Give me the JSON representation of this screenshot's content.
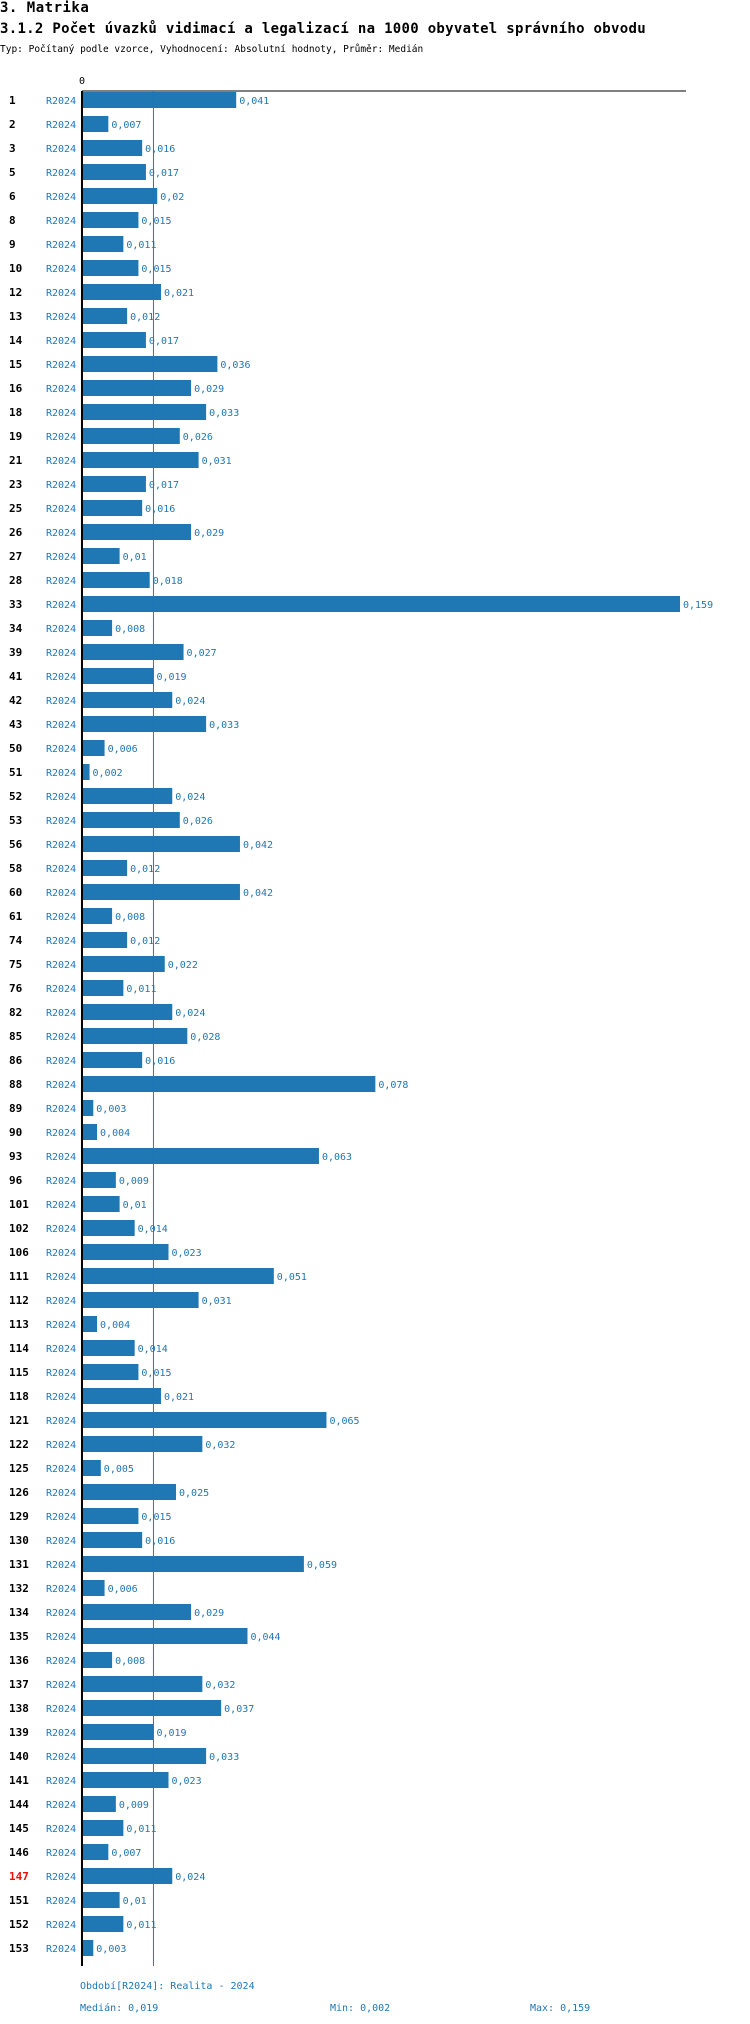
{
  "header": {
    "section_title": "3. Matrika",
    "chart_title": "3.1.2 Počet úvazků vidimací a legalizací na 1000 obyvatel správního obvodu",
    "subtitle": "Typ: Počítaný podle vzorce, Vyhodnocení: Absolutní hodnoty, Průměr: Medián"
  },
  "colors": {
    "bar": "#1f77b4",
    "label_blue": "#1f77b4",
    "highlight": "#e8120c",
    "axis": "#000000",
    "median_line": "#1f77b4"
  },
  "chart_data": {
    "type": "bar",
    "orientation": "horizontal",
    "x_zero_label": "0",
    "xlim": [
      0,
      0.159
    ],
    "median": 0.019,
    "highlighted": "147",
    "series": [
      {
        "name": "R2024",
        "label_in_row": "R2024"
      }
    ],
    "rows": [
      {
        "id": "1",
        "value": 0.041,
        "label": "0,041"
      },
      {
        "id": "2",
        "value": 0.007,
        "label": "0,007"
      },
      {
        "id": "3",
        "value": 0.016,
        "label": "0,016"
      },
      {
        "id": "5",
        "value": 0.017,
        "label": "0,017"
      },
      {
        "id": "6",
        "value": 0.02,
        "label": "0,02"
      },
      {
        "id": "8",
        "value": 0.015,
        "label": "0,015"
      },
      {
        "id": "9",
        "value": 0.011,
        "label": "0,011"
      },
      {
        "id": "10",
        "value": 0.015,
        "label": "0,015"
      },
      {
        "id": "12",
        "value": 0.021,
        "label": "0,021"
      },
      {
        "id": "13",
        "value": 0.012,
        "label": "0,012"
      },
      {
        "id": "14",
        "value": 0.017,
        "label": "0,017"
      },
      {
        "id": "15",
        "value": 0.036,
        "label": "0,036"
      },
      {
        "id": "16",
        "value": 0.029,
        "label": "0,029"
      },
      {
        "id": "18",
        "value": 0.033,
        "label": "0,033"
      },
      {
        "id": "19",
        "value": 0.026,
        "label": "0,026"
      },
      {
        "id": "21",
        "value": 0.031,
        "label": "0,031"
      },
      {
        "id": "23",
        "value": 0.017,
        "label": "0,017"
      },
      {
        "id": "25",
        "value": 0.016,
        "label": "0,016"
      },
      {
        "id": "26",
        "value": 0.029,
        "label": "0,029"
      },
      {
        "id": "27",
        "value": 0.01,
        "label": "0,01"
      },
      {
        "id": "28",
        "value": 0.018,
        "label": "0,018"
      },
      {
        "id": "33",
        "value": 0.159,
        "label": "0,159"
      },
      {
        "id": "34",
        "value": 0.008,
        "label": "0,008"
      },
      {
        "id": "39",
        "value": 0.027,
        "label": "0,027"
      },
      {
        "id": "41",
        "value": 0.019,
        "label": "0,019"
      },
      {
        "id": "42",
        "value": 0.024,
        "label": "0,024"
      },
      {
        "id": "43",
        "value": 0.033,
        "label": "0,033"
      },
      {
        "id": "50",
        "value": 0.006,
        "label": "0,006"
      },
      {
        "id": "51",
        "value": 0.002,
        "label": "0,002"
      },
      {
        "id": "52",
        "value": 0.024,
        "label": "0,024"
      },
      {
        "id": "53",
        "value": 0.026,
        "label": "0,026"
      },
      {
        "id": "56",
        "value": 0.042,
        "label": "0,042"
      },
      {
        "id": "58",
        "value": 0.012,
        "label": "0,012"
      },
      {
        "id": "60",
        "value": 0.042,
        "label": "0,042"
      },
      {
        "id": "61",
        "value": 0.008,
        "label": "0,008"
      },
      {
        "id": "74",
        "value": 0.012,
        "label": "0,012"
      },
      {
        "id": "75",
        "value": 0.022,
        "label": "0,022"
      },
      {
        "id": "76",
        "value": 0.011,
        "label": "0,011"
      },
      {
        "id": "82",
        "value": 0.024,
        "label": "0,024"
      },
      {
        "id": "85",
        "value": 0.028,
        "label": "0,028"
      },
      {
        "id": "86",
        "value": 0.016,
        "label": "0,016"
      },
      {
        "id": "88",
        "value": 0.078,
        "label": "0,078"
      },
      {
        "id": "89",
        "value": 0.003,
        "label": "0,003"
      },
      {
        "id": "90",
        "value": 0.004,
        "label": "0,004"
      },
      {
        "id": "93",
        "value": 0.063,
        "label": "0,063"
      },
      {
        "id": "96",
        "value": 0.009,
        "label": "0,009"
      },
      {
        "id": "101",
        "value": 0.01,
        "label": "0,01"
      },
      {
        "id": "102",
        "value": 0.014,
        "label": "0,014"
      },
      {
        "id": "106",
        "value": 0.023,
        "label": "0,023"
      },
      {
        "id": "111",
        "value": 0.051,
        "label": "0,051"
      },
      {
        "id": "112",
        "value": 0.031,
        "label": "0,031"
      },
      {
        "id": "113",
        "value": 0.004,
        "label": "0,004"
      },
      {
        "id": "114",
        "value": 0.014,
        "label": "0,014"
      },
      {
        "id": "115",
        "value": 0.015,
        "label": "0,015"
      },
      {
        "id": "118",
        "value": 0.021,
        "label": "0,021"
      },
      {
        "id": "121",
        "value": 0.065,
        "label": "0,065"
      },
      {
        "id": "122",
        "value": 0.032,
        "label": "0,032"
      },
      {
        "id": "125",
        "value": 0.005,
        "label": "0,005"
      },
      {
        "id": "126",
        "value": 0.025,
        "label": "0,025"
      },
      {
        "id": "129",
        "value": 0.015,
        "label": "0,015"
      },
      {
        "id": "130",
        "value": 0.016,
        "label": "0,016"
      },
      {
        "id": "131",
        "value": 0.059,
        "label": "0,059"
      },
      {
        "id": "132",
        "value": 0.006,
        "label": "0,006"
      },
      {
        "id": "134",
        "value": 0.029,
        "label": "0,029"
      },
      {
        "id": "135",
        "value": 0.044,
        "label": "0,044"
      },
      {
        "id": "136",
        "value": 0.008,
        "label": "0,008"
      },
      {
        "id": "137",
        "value": 0.032,
        "label": "0,032"
      },
      {
        "id": "138",
        "value": 0.037,
        "label": "0,037"
      },
      {
        "id": "139",
        "value": 0.019,
        "label": "0,019"
      },
      {
        "id": "140",
        "value": 0.033,
        "label": "0,033"
      },
      {
        "id": "141",
        "value": 0.023,
        "label": "0,023"
      },
      {
        "id": "144",
        "value": 0.009,
        "label": "0,009"
      },
      {
        "id": "145",
        "value": 0.011,
        "label": "0,011"
      },
      {
        "id": "146",
        "value": 0.007,
        "label": "0,007"
      },
      {
        "id": "147",
        "value": 0.024,
        "label": "0,024"
      },
      {
        "id": "151",
        "value": 0.01,
        "label": "0,01"
      },
      {
        "id": "152",
        "value": 0.011,
        "label": "0,011"
      },
      {
        "id": "153",
        "value": 0.003,
        "label": "0,003"
      }
    ]
  },
  "footer": {
    "period": "Období[R2024]: Realita - 2024",
    "median": "Medián: 0,019",
    "min": "Min: 0,002",
    "max": "Max: 0,159"
  }
}
